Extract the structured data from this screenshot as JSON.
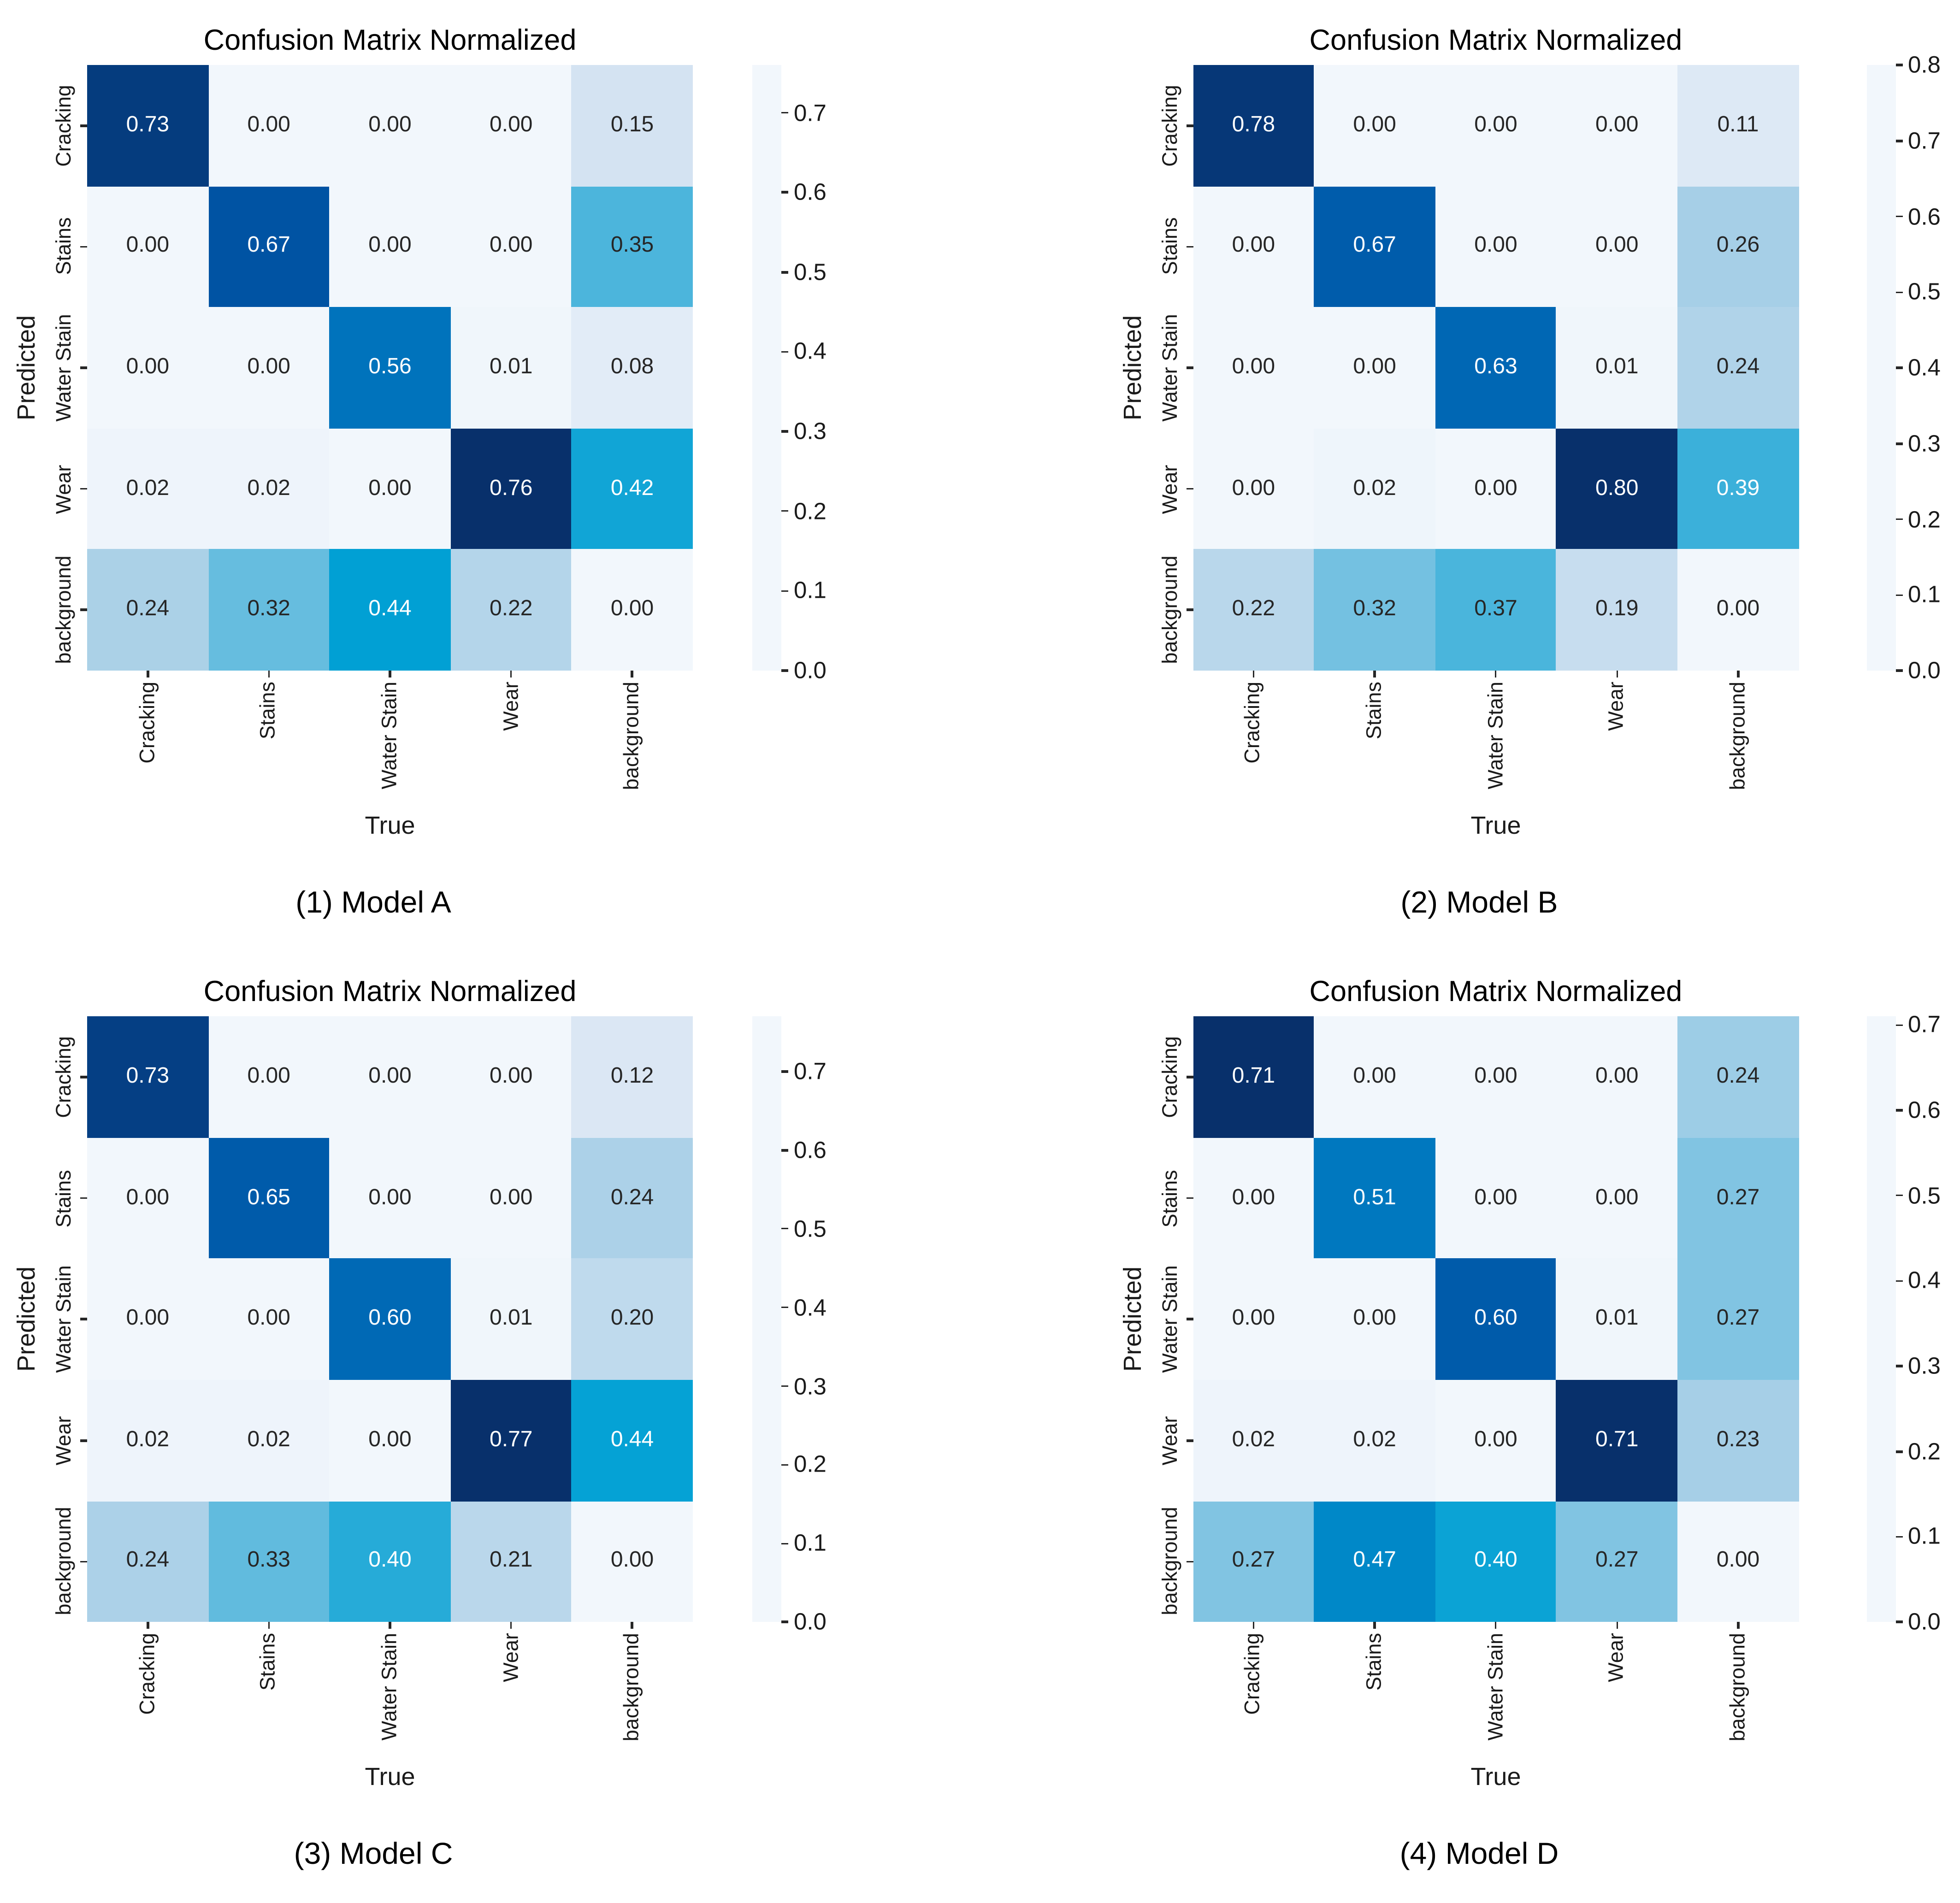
{
  "figure": {
    "background": "#ffffff",
    "colormap_name": "Blues",
    "colormap_stops": [
      [
        0.0,
        [
          242,
          247,
          252
        ]
      ],
      [
        0.2,
        [
          212,
          227,
          242
        ]
      ],
      [
        0.32,
        [
          169,
          208,
          231
        ]
      ],
      [
        0.46,
        [
          76,
          181,
          220
        ]
      ],
      [
        0.58,
        [
          0,
          160,
          212
        ]
      ],
      [
        0.74,
        [
          0,
          114,
          188
        ]
      ],
      [
        0.88,
        [
          0,
          83,
          164
        ]
      ],
      [
        1.0,
        [
          8,
          48,
          107
        ]
      ]
    ],
    "cell_text_light": "#ffffff",
    "cell_text_dark": "#262626",
    "luminance_threshold": 150
  },
  "chart_data": [
    {
      "type": "heatmap",
      "title": "Confusion Matrix Normalized",
      "caption": "(1) Model A",
      "xlabel": "True",
      "ylabel": "Predicted",
      "x_categories": [
        "Cracking",
        "Stains",
        "Water Stain",
        "Wear",
        "background"
      ],
      "y_categories": [
        "Cracking",
        "Stains",
        "Water Stain",
        "Wear",
        "background"
      ],
      "values": [
        [
          0.73,
          0.0,
          0.0,
          0.0,
          0.15
        ],
        [
          0.0,
          0.67,
          0.0,
          0.0,
          0.35
        ],
        [
          0.0,
          0.0,
          0.56,
          0.01,
          0.08
        ],
        [
          0.02,
          0.02,
          0.0,
          0.76,
          0.42
        ],
        [
          0.24,
          0.32,
          0.44,
          0.22,
          0.0
        ]
      ],
      "vmin": 0.0,
      "vmax": 0.76,
      "colorbar_ticks": [
        0.0,
        0.1,
        0.2,
        0.3,
        0.4,
        0.5,
        0.6,
        0.7
      ],
      "legend_position": "right",
      "grid": false
    },
    {
      "type": "heatmap",
      "title": "Confusion Matrix Normalized",
      "caption": "(2) Model B",
      "xlabel": "True",
      "ylabel": "Predicted",
      "x_categories": [
        "Cracking",
        "Stains",
        "Water Stain",
        "Wear",
        "background"
      ],
      "y_categories": [
        "Cracking",
        "Stains",
        "Water Stain",
        "Wear",
        "background"
      ],
      "values": [
        [
          0.78,
          0.0,
          0.0,
          0.0,
          0.11
        ],
        [
          0.0,
          0.67,
          0.0,
          0.0,
          0.26
        ],
        [
          0.0,
          0.0,
          0.63,
          0.01,
          0.24
        ],
        [
          0.0,
          0.02,
          0.0,
          0.8,
          0.39
        ],
        [
          0.22,
          0.32,
          0.37,
          0.19,
          0.0
        ]
      ],
      "vmin": 0.0,
      "vmax": 0.8,
      "colorbar_ticks": [
        0.0,
        0.1,
        0.2,
        0.3,
        0.4,
        0.5,
        0.6,
        0.7,
        0.8
      ],
      "legend_position": "right",
      "grid": false
    },
    {
      "type": "heatmap",
      "title": "Confusion Matrix Normalized",
      "caption": "(3) Model C",
      "xlabel": "True",
      "ylabel": "Predicted",
      "x_categories": [
        "Cracking",
        "Stains",
        "Water Stain",
        "Wear",
        "background"
      ],
      "y_categories": [
        "Cracking",
        "Stains",
        "Water Stain",
        "Wear",
        "background"
      ],
      "values": [
        [
          0.73,
          0.0,
          0.0,
          0.0,
          0.12
        ],
        [
          0.0,
          0.65,
          0.0,
          0.0,
          0.24
        ],
        [
          0.0,
          0.0,
          0.6,
          0.01,
          0.2
        ],
        [
          0.02,
          0.02,
          0.0,
          0.77,
          0.44
        ],
        [
          0.24,
          0.33,
          0.4,
          0.21,
          0.0
        ]
      ],
      "vmin": 0.0,
      "vmax": 0.77,
      "colorbar_ticks": [
        0.0,
        0.1,
        0.2,
        0.3,
        0.4,
        0.5,
        0.6,
        0.7
      ],
      "legend_position": "right",
      "grid": false
    },
    {
      "type": "heatmap",
      "title": "Confusion Matrix Normalized",
      "caption": "(4) Model D",
      "xlabel": "True",
      "ylabel": "Predicted",
      "x_categories": [
        "Cracking",
        "Stains",
        "Water Stain",
        "Wear",
        "background"
      ],
      "y_categories": [
        "Cracking",
        "Stains",
        "Water Stain",
        "Wear",
        "background"
      ],
      "values": [
        [
          0.71,
          0.0,
          0.0,
          0.0,
          0.24
        ],
        [
          0.0,
          0.51,
          0.0,
          0.0,
          0.27
        ],
        [
          0.0,
          0.0,
          0.6,
          0.01,
          0.27
        ],
        [
          0.02,
          0.02,
          0.0,
          0.71,
          0.23
        ],
        [
          0.27,
          0.47,
          0.4,
          0.27,
          0.0
        ]
      ],
      "vmin": 0.0,
      "vmax": 0.71,
      "colorbar_ticks": [
        0.0,
        0.1,
        0.2,
        0.3,
        0.4,
        0.5,
        0.6,
        0.7
      ],
      "legend_position": "right",
      "grid": false
    }
  ]
}
